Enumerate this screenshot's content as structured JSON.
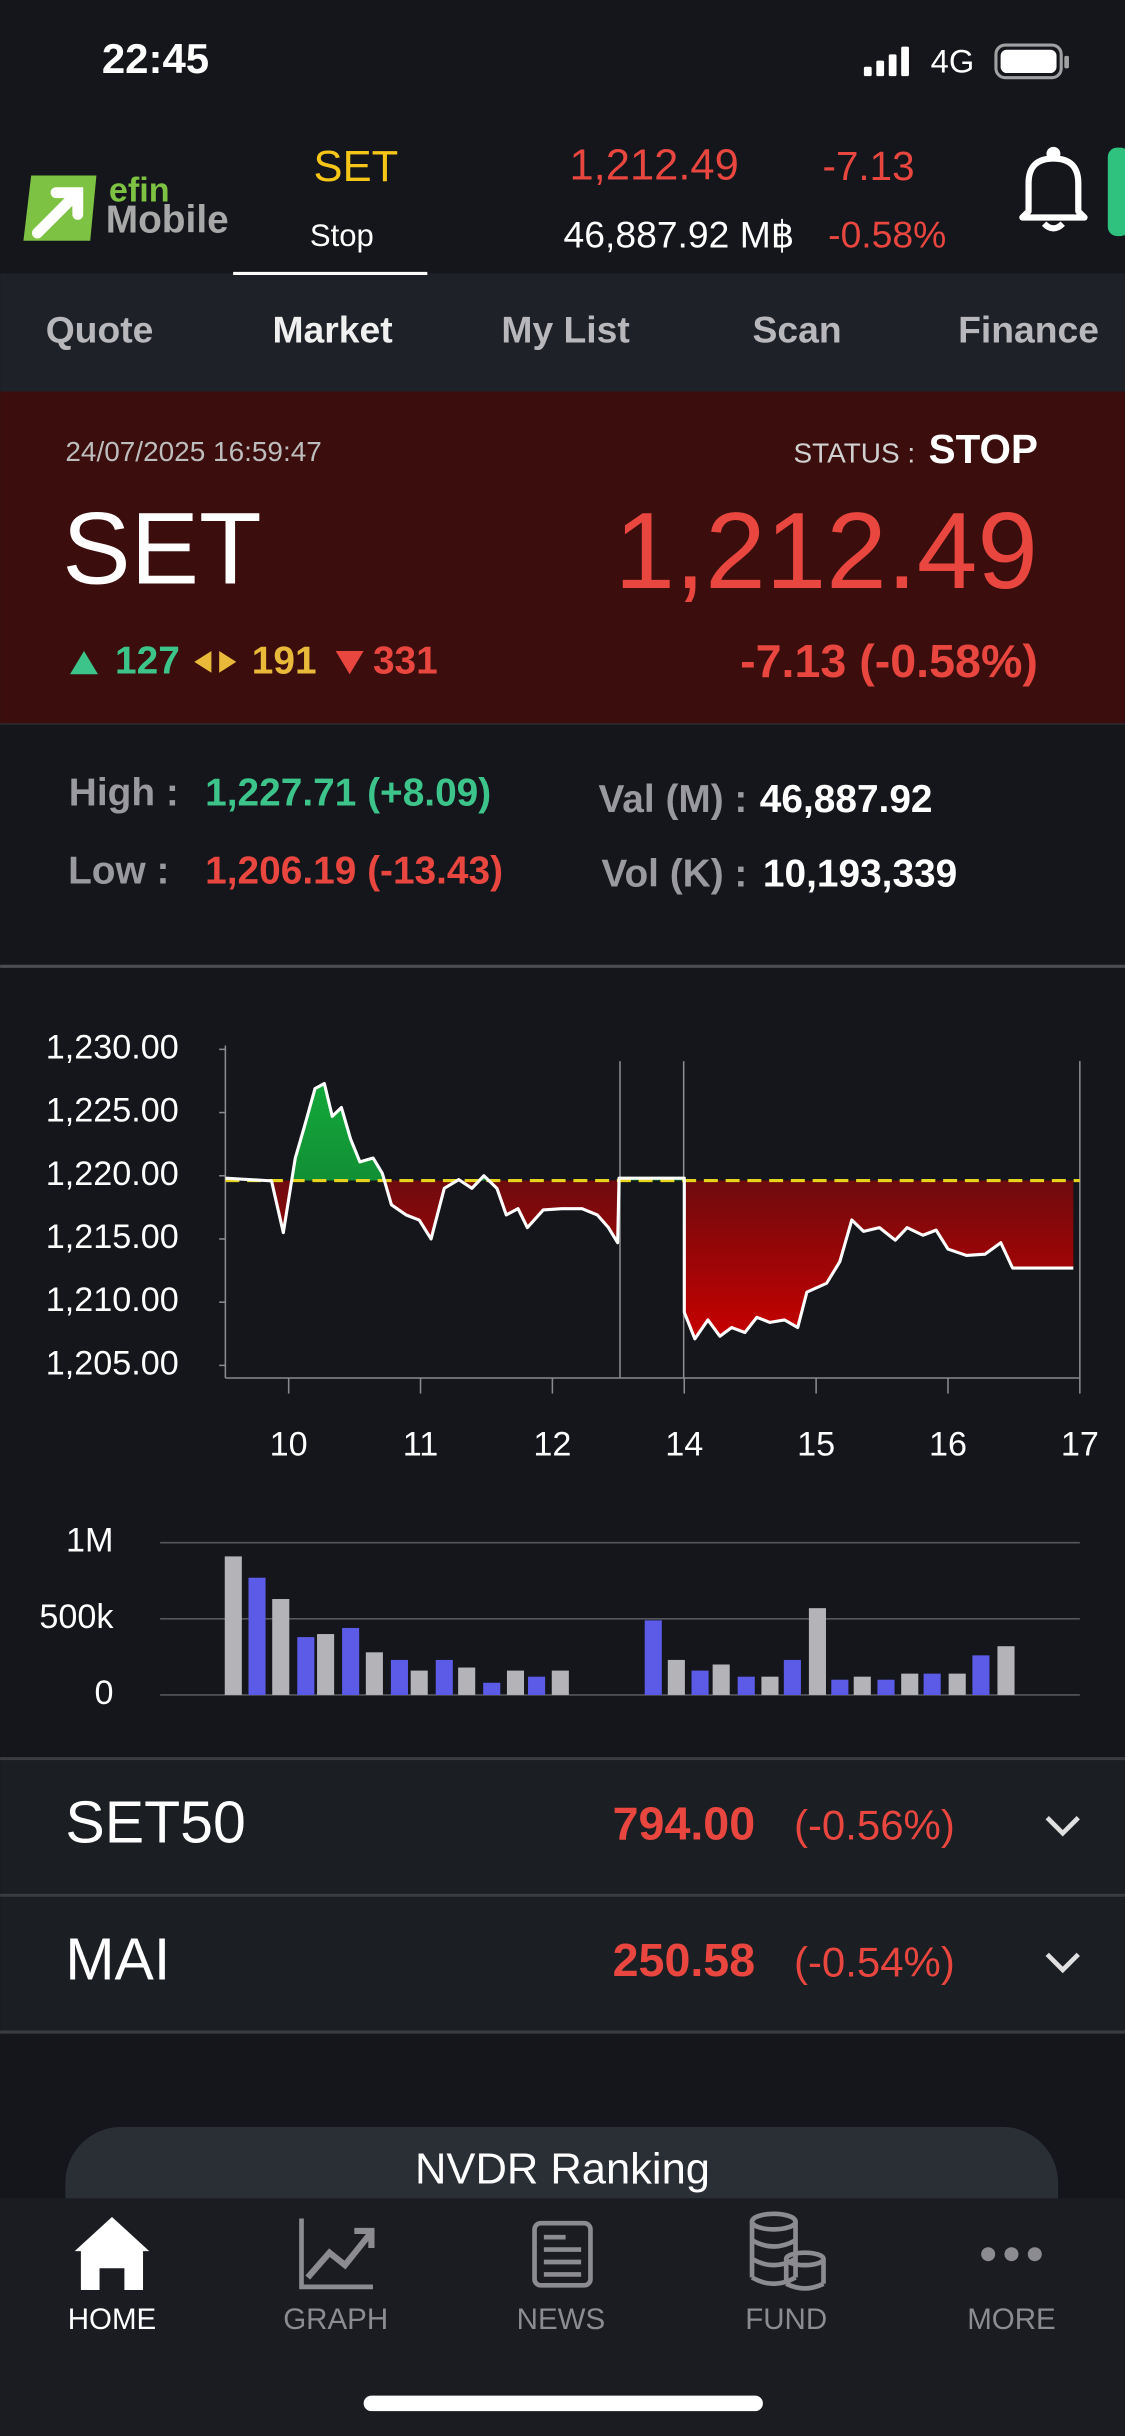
{
  "status_bar": {
    "time": "22:45",
    "network": "4G"
  },
  "header": {
    "logo": [
      "efin",
      "Mobile"
    ],
    "symbol": "SET",
    "state": "Stop",
    "last": "1,212.49",
    "change": "-7.13",
    "value": "46,887.92 M฿",
    "percent": "-0.58%"
  },
  "tabs": [
    "Quote",
    "Market",
    "My List",
    "Scan",
    "Finance"
  ],
  "summary": {
    "datetime": "24/07/2025 16:59:47",
    "status_label": "STATUS :",
    "status": "STOP",
    "symbol": "SET",
    "last": "1,212.49",
    "advances": "127",
    "unchanged": "191",
    "declines": "331",
    "change": "-7.13 (-0.58%)"
  },
  "stats": [
    {
      "label": "High :",
      "value": "1,227.71 (+8.09)"
    },
    {
      "label": "Val (M) :",
      "value": "46,887.92"
    },
    {
      "label": "Low :",
      "value": "1,206.19 (-13.43)"
    },
    {
      "label": "Vol (K) :",
      "value": "10,193,339"
    }
  ],
  "chart_data": [
    {
      "type": "line",
      "x": [
        9.52,
        9.87,
        9.96,
        10.05,
        10.12,
        10.2,
        10.27,
        10.33,
        10.4,
        10.47,
        10.54,
        10.64,
        10.71,
        10.78,
        10.89,
        10.99,
        11.08,
        11.18,
        11.29,
        11.39,
        11.48,
        11.58,
        11.65,
        11.74,
        11.81,
        11.93,
        12.14,
        12.45,
        12.68,
        12.85,
        12.99,
        13.01,
        13.95,
        14.0,
        14.0,
        14.08,
        14.18,
        14.27,
        14.36,
        14.46,
        14.55,
        14.65,
        14.76,
        14.86,
        14.93,
        15.08,
        15.18,
        15.27,
        15.36,
        15.48,
        15.6,
        15.69,
        15.81,
        15.91,
        16.0,
        16.14,
        16.28,
        16.4,
        16.49,
        16.64,
        16.95
      ],
      "values": [
        1219.8,
        1219.6,
        1215.5,
        1221.4,
        1223.9,
        1226.9,
        1227.3,
        1224.7,
        1225.4,
        1222.9,
        1221.1,
        1221.4,
        1220.2,
        1217.7,
        1216.9,
        1216.5,
        1215.0,
        1219.0,
        1219.7,
        1219.0,
        1220.0,
        1219.0,
        1216.9,
        1217.4,
        1215.9,
        1217.3,
        1217.4,
        1217.4,
        1216.9,
        1215.9,
        1214.7,
        1219.8,
        1219.8,
        1219.8,
        1209.2,
        1207.1,
        1208.6,
        1207.3,
        1208.0,
        1207.6,
        1208.8,
        1208.4,
        1208.6,
        1208.0,
        1210.8,
        1211.5,
        1213.2,
        1216.5,
        1215.6,
        1215.9,
        1214.9,
        1215.9,
        1215.3,
        1215.7,
        1214.2,
        1213.7,
        1213.8,
        1214.7,
        1212.7,
        1212.7,
        1212.7
      ],
      "color": "#ffffff",
      "reference": 1219.62,
      "reference_color": "#e6d31e",
      "above_color": "#12a83a",
      "below_color": "#c80000",
      "xlim": [
        9.52,
        17
      ],
      "ylim": [
        1204,
        1230.3
      ],
      "xticks": [
        10,
        11,
        12,
        14,
        15,
        16,
        17
      ],
      "yticks": [
        {
          "value": 1205,
          "label": "1,205.00"
        },
        {
          "value": 1210,
          "label": "1,210.00"
        },
        {
          "value": 1215,
          "label": "1,215.00"
        },
        {
          "value": 1220,
          "label": "1,220.00"
        },
        {
          "value": 1225,
          "label": "1,225.00"
        },
        {
          "value": 1230,
          "label": "1,230.00"
        }
      ]
    },
    {
      "type": "bar",
      "x": [
        9.58,
        9.76,
        9.94,
        10.13,
        10.28,
        10.47,
        10.65,
        10.84,
        10.99,
        11.18,
        11.35,
        11.54,
        11.72,
        11.88,
        12.12,
        13.53,
        13.88,
        14.12,
        14.28,
        14.47,
        14.65,
        14.82,
        15.01,
        15.18,
        15.35,
        15.53,
        15.71,
        15.88,
        16.07,
        16.25,
        16.44
      ],
      "values": [
        910000,
        770000,
        630000,
        380000,
        400000,
        440000,
        280000,
        230000,
        160000,
        230000,
        180000,
        80000,
        160000,
        120000,
        160000,
        490000,
        230000,
        160000,
        200000,
        120000,
        120000,
        230000,
        570000,
        100000,
        120000,
        100000,
        140000,
        140000,
        140000,
        260000,
        320000
      ],
      "colors": [
        "#b4b4b8",
        "#5b5be8"
      ],
      "ylim": [
        0,
        1000000
      ],
      "yticks": [
        0,
        {
          "value": 500000,
          "label": "500k"
        },
        {
          "value": 1000000,
          "label": "1M"
        }
      ]
    }
  ],
  "indices": [
    {
      "name": "SET50",
      "last": "794.00",
      "change": "(-0.56%)"
    },
    {
      "name": "MAI",
      "last": "250.58",
      "change": "(-0.54%)"
    }
  ],
  "button": "NVDR Ranking",
  "nav": [
    "HOME",
    "GRAPH",
    "NEWS",
    "FUND",
    "MORE"
  ]
}
